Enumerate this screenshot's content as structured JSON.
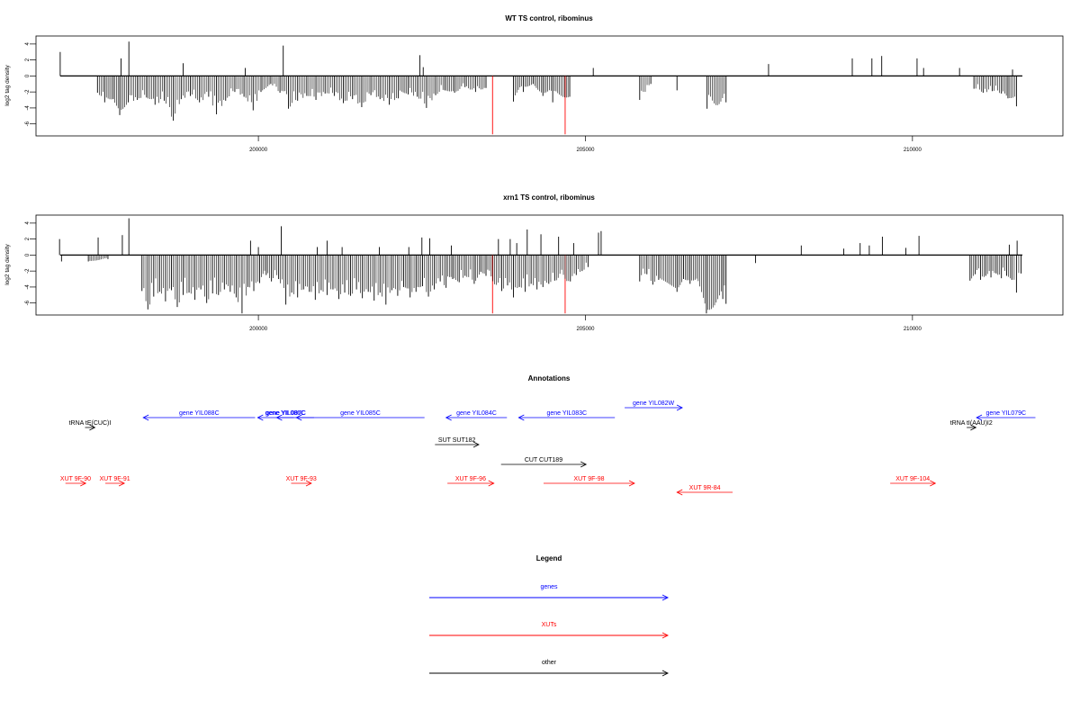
{
  "chart_data": [
    {
      "type": "bar",
      "title": "WT TS control, ribominus",
      "ylabel": "log2 tag density",
      "xlabel": "",
      "xlim": [
        196600,
        212300
      ],
      "ylim": [
        -7.5,
        5
      ],
      "yticks": [
        4,
        2,
        0,
        -2,
        -4,
        -6
      ],
      "xticks": [
        200000,
        205000,
        210000
      ],
      "grid": false,
      "series": [
        {
          "color": "#000000",
          "points": [
            [
              196970,
              3.0
            ],
            [
              197900,
              2.2
            ],
            [
              198020,
              4.3
            ],
            [
              198850,
              1.6
            ],
            [
              199800,
              1.0
            ],
            [
              200380,
              3.8
            ],
            [
              202470,
              2.6
            ],
            [
              202520,
              1.1
            ],
            [
              205120,
              1.0
            ],
            [
              207800,
              1.5
            ],
            [
              209080,
              2.2
            ],
            [
              209380,
              2.2
            ],
            [
              209530,
              2.5
            ],
            [
              210070,
              2.2
            ],
            [
              210170,
              1.0
            ],
            [
              210720,
              1.0
            ],
            [
              211530,
              0.8
            ],
            [
              197540,
              -2.1
            ],
            [
              197650,
              -3.3
            ],
            [
              197780,
              -2.9
            ],
            [
              197880,
              -4.9
            ],
            [
              198010,
              -3.3
            ],
            [
              198150,
              -3.0
            ],
            [
              198290,
              -2.7
            ],
            [
              198420,
              -3.6
            ],
            [
              198560,
              -3.1
            ],
            [
              198700,
              -5.6
            ],
            [
              198820,
              -2.9
            ],
            [
              198960,
              -2.5
            ],
            [
              199100,
              -3.3
            ],
            [
              199240,
              -2.6
            ],
            [
              199360,
              -4.8
            ],
            [
              199500,
              -3.1
            ],
            [
              199640,
              -2.0
            ],
            [
              199780,
              -2.6
            ],
            [
              199920,
              -4.3
            ],
            [
              200040,
              -2.0
            ],
            [
              200190,
              -1.0
            ],
            [
              200330,
              -2.1
            ],
            [
              200460,
              -4.1
            ],
            [
              200600,
              -3.1
            ],
            [
              200740,
              -2.5
            ],
            [
              200880,
              -3.0
            ],
            [
              201020,
              -2.2
            ],
            [
              201160,
              -2.5
            ],
            [
              201300,
              -3.4
            ],
            [
              201440,
              -2.9
            ],
            [
              201580,
              -3.9
            ],
            [
              201720,
              -2.4
            ],
            [
              201860,
              -2.9
            ],
            [
              202000,
              -3.6
            ],
            [
              202140,
              -2.8
            ],
            [
              202290,
              -2.3
            ],
            [
              202430,
              -2.6
            ],
            [
              202570,
              -4.0
            ],
            [
              202710,
              -2.4
            ],
            [
              202850,
              -1.8
            ],
            [
              203000,
              -2.1
            ],
            [
              203160,
              -1.4
            ],
            [
              203320,
              -2.0
            ],
            [
              203480,
              -1.5
            ],
            [
              203900,
              -3.2
            ],
            [
              204050,
              -2.0
            ],
            [
              204200,
              -1.0
            ],
            [
              204350,
              -2.5
            ],
            [
              204500,
              -3.3
            ],
            [
              204760,
              -2.6
            ],
            [
              205830,
              -3.0
            ],
            [
              206000,
              -1.0
            ],
            [
              206400,
              -1.8
            ],
            [
              206860,
              -4.1
            ],
            [
              207150,
              -3.3
            ],
            [
              210940,
              -1.6
            ],
            [
              211080,
              -2.1
            ],
            [
              211220,
              -1.9
            ],
            [
              211360,
              -2.2
            ],
            [
              211460,
              -2.8
            ],
            [
              211590,
              -3.8
            ]
          ]
        },
        {
          "color": "#ff0000",
          "points": [
            [
              203580,
              -7.3
            ],
            [
              204690,
              -7.3
            ]
          ]
        }
      ]
    },
    {
      "type": "bar",
      "title": "xrn1 TS control, ribominus",
      "ylabel": "log2 tag density",
      "xlabel": "",
      "xlim": [
        196600,
        212300
      ],
      "ylim": [
        -7.5,
        5
      ],
      "yticks": [
        4,
        2,
        0,
        -2,
        -4,
        -6
      ],
      "xticks": [
        200000,
        205000,
        210000
      ],
      "grid": false,
      "series": [
        {
          "color": "#000000",
          "points": [
            [
              196960,
              2.0
            ],
            [
              197550,
              2.2
            ],
            [
              197920,
              2.5
            ],
            [
              198020,
              4.6
            ],
            [
              199880,
              1.8
            ],
            [
              200000,
              1.0
            ],
            [
              200350,
              3.6
            ],
            [
              200900,
              1.0
            ],
            [
              201050,
              1.8
            ],
            [
              201280,
              1.0
            ],
            [
              201850,
              1.0
            ],
            [
              202300,
              1.0
            ],
            [
              202500,
              2.2
            ],
            [
              202620,
              2.1
            ],
            [
              202950,
              1.2
            ],
            [
              203670,
              2.0
            ],
            [
              203850,
              2.0
            ],
            [
              203950,
              1.5
            ],
            [
              204110,
              3.2
            ],
            [
              204320,
              2.6
            ],
            [
              204590,
              2.3
            ],
            [
              204820,
              1.5
            ],
            [
              205200,
              2.8
            ],
            [
              205240,
              3.0
            ],
            [
              208300,
              1.2
            ],
            [
              208950,
              0.8
            ],
            [
              209200,
              1.5
            ],
            [
              209340,
              1.2
            ],
            [
              209540,
              2.3
            ],
            [
              209900,
              0.9
            ],
            [
              210100,
              2.4
            ],
            [
              211480,
              1.3
            ],
            [
              211600,
              1.8
            ],
            [
              196990,
              -0.8
            ],
            [
              197400,
              -0.8
            ],
            [
              197700,
              -0.5
            ],
            [
              198220,
              -4.5
            ],
            [
              198310,
              -6.8
            ],
            [
              198400,
              -5.2
            ],
            [
              198490,
              -4.6
            ],
            [
              198580,
              -5.8
            ],
            [
              198670,
              -4.4
            ],
            [
              198760,
              -6.5
            ],
            [
              198850,
              -5.0
            ],
            [
              198940,
              -4.7
            ],
            [
              199030,
              -5.6
            ],
            [
              199120,
              -4.3
            ],
            [
              199210,
              -6.0
            ],
            [
              199300,
              -4.8
            ],
            [
              199390,
              -5.0
            ],
            [
              199480,
              -4.3
            ],
            [
              199570,
              -4.6
            ],
            [
              199660,
              -5.3
            ],
            [
              199750,
              -7.3
            ],
            [
              199840,
              -4.0
            ],
            [
              199930,
              -4.5
            ],
            [
              200020,
              -3.5
            ],
            [
              200120,
              -2.5
            ],
            [
              200200,
              -3.3
            ],
            [
              200310,
              -3.0
            ],
            [
              200420,
              -6.2
            ],
            [
              200510,
              -4.7
            ],
            [
              200600,
              -5.3
            ],
            [
              200690,
              -4.3
            ],
            [
              200780,
              -4.6
            ],
            [
              200870,
              -5.6
            ],
            [
              200960,
              -4.4
            ],
            [
              201050,
              -5.0
            ],
            [
              201140,
              -4.3
            ],
            [
              201230,
              -5.5
            ],
            [
              201320,
              -4.7
            ],
            [
              201410,
              -5.1
            ],
            [
              201500,
              -4.3
            ],
            [
              201590,
              -5.4
            ],
            [
              201680,
              -4.6
            ],
            [
              201770,
              -5.7
            ],
            [
              201860,
              -4.7
            ],
            [
              201950,
              -6.2
            ],
            [
              202040,
              -4.4
            ],
            [
              202130,
              -5.1
            ],
            [
              202220,
              -4.0
            ],
            [
              202320,
              -5.3
            ],
            [
              202410,
              -4.6
            ],
            [
              202510,
              -3.9
            ],
            [
              202600,
              -5.2
            ],
            [
              202690,
              -4.3
            ],
            [
              202780,
              -3.3
            ],
            [
              202870,
              -4.1
            ],
            [
              202970,
              -3.0
            ],
            [
              203070,
              -3.4
            ],
            [
              203160,
              -2.6
            ],
            [
              203300,
              -3.6
            ],
            [
              203400,
              -2.1
            ],
            [
              203480,
              -2.6
            ],
            [
              203720,
              -4.5
            ],
            [
              203810,
              -3.8
            ],
            [
              203900,
              -5.3
            ],
            [
              203990,
              -4.0
            ],
            [
              204080,
              -4.6
            ],
            [
              204170,
              -3.6
            ],
            [
              204260,
              -4.3
            ],
            [
              204350,
              -4.0
            ],
            [
              204440,
              -3.6
            ],
            [
              204530,
              -3.2
            ],
            [
              204770,
              -3.3
            ],
            [
              204860,
              -2.5
            ],
            [
              204950,
              -2.0
            ],
            [
              205040,
              -1.5
            ],
            [
              205830,
              -3.3
            ],
            [
              205940,
              -2.4
            ],
            [
              206030,
              -3.7
            ],
            [
              206120,
              -3.1
            ],
            [
              206400,
              -4.6
            ],
            [
              206500,
              -3.0
            ],
            [
              206600,
              -3.6
            ],
            [
              206850,
              -7.3
            ],
            [
              207100,
              -5.5
            ],
            [
              207150,
              -6.1
            ],
            [
              207600,
              -1.0
            ],
            [
              210880,
              -3.2
            ],
            [
              210960,
              -2.4
            ],
            [
              211040,
              -3.1
            ],
            [
              211120,
              -2.6
            ],
            [
              211200,
              -2.8
            ],
            [
              211280,
              -2.3
            ],
            [
              211360,
              -2.9
            ],
            [
              211440,
              -2.6
            ],
            [
              211520,
              -3.1
            ],
            [
              211590,
              -4.7
            ],
            [
              211660,
              -2.3
            ]
          ]
        },
        {
          "color": "#ff0000",
          "points": [
            [
              203580,
              -7.3
            ],
            [
              204690,
              -7.3
            ]
          ]
        }
      ]
    },
    {
      "type": "annotation-track",
      "title": "Annotations",
      "xlim": [
        196600,
        212300
      ],
      "features": [
        {
          "label": "tRNA tE(CUC)I",
          "start": 197350,
          "end": 197500,
          "strand": "+",
          "color": "#000000",
          "row": 1
        },
        {
          "label": "gene YIL088C",
          "start": 199950,
          "end": 198240,
          "strand": "-",
          "color": "#0000ff",
          "row": 0
        },
        {
          "label": "gene YIL087C",
          "start": 200850,
          "end": 199990,
          "strand": "-",
          "color": "#0000ff",
          "row": 0
        },
        {
          "label": "gene YIL086C",
          "start": 200540,
          "end": 200280,
          "strand": "-",
          "color": "#0000ff",
          "row": 0
        },
        {
          "label": "gene YIL085C",
          "start": 202540,
          "end": 200580,
          "strand": "-",
          "color": "#0000ff",
          "row": 0
        },
        {
          "label": "gene YIL084C",
          "start": 203800,
          "end": 202870,
          "strand": "-",
          "color": "#0000ff",
          "row": 0
        },
        {
          "label": "gene YIL083C",
          "start": 205450,
          "end": 203980,
          "strand": "-",
          "color": "#0000ff",
          "row": 0
        },
        {
          "label": "gene YIL082W",
          "start": 205600,
          "end": 206480,
          "strand": "+",
          "color": "#0000ff",
          "row": -1
        },
        {
          "label": "tRNA tI(AAU)I2",
          "start": 210830,
          "end": 210970,
          "strand": "+",
          "color": "#000000",
          "row": 1
        },
        {
          "label": "gene YIL079C",
          "start": 211880,
          "end": 210980,
          "strand": "-",
          "color": "#0000ff",
          "row": 0
        },
        {
          "label": "SUT SUT182",
          "start": 202700,
          "end": 203370,
          "strand": "+",
          "color": "#000000",
          "row": 2
        },
        {
          "label": "CUT CUT189",
          "start": 203710,
          "end": 205010,
          "strand": "+",
          "color": "#000000",
          "row": 3
        },
        {
          "label": "XUT 9F-90",
          "start": 197050,
          "end": 197360,
          "strand": "+",
          "color": "#ff0000",
          "row": 4
        },
        {
          "label": "XUT 9F-91",
          "start": 197660,
          "end": 197950,
          "strand": "+",
          "color": "#ff0000",
          "row": 4
        },
        {
          "label": "XUT 9F-93",
          "start": 200500,
          "end": 200810,
          "strand": "+",
          "color": "#ff0000",
          "row": 4
        },
        {
          "label": "XUT 9F-96",
          "start": 202890,
          "end": 203600,
          "strand": "+",
          "color": "#ff0000",
          "row": 4
        },
        {
          "label": "XUT 9F-98",
          "start": 204360,
          "end": 205750,
          "strand": "+",
          "color": "#ff0000",
          "row": 4
        },
        {
          "label": "XUT 9R-84",
          "start": 207250,
          "end": 206400,
          "strand": "-",
          "color": "#ff0000",
          "row": 5
        },
        {
          "label": "XUT 9F-104",
          "start": 209660,
          "end": 210350,
          "strand": "+",
          "color": "#ff0000",
          "row": 4
        }
      ]
    },
    {
      "type": "legend",
      "title": "Legend",
      "entries": [
        {
          "label": "genes",
          "color": "#0000ff"
        },
        {
          "label": "XUTs",
          "color": "#ff0000"
        },
        {
          "label": "other",
          "color": "#000000"
        }
      ]
    }
  ]
}
